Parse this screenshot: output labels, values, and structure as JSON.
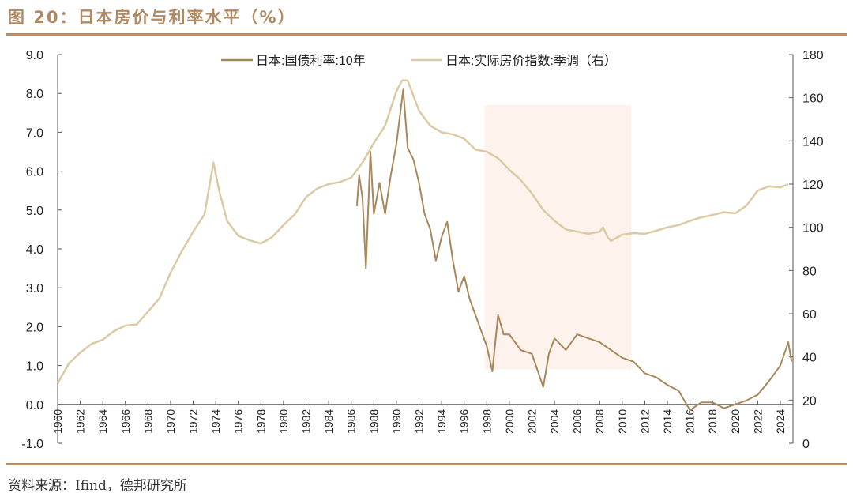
{
  "title": "图 20：日本房价与利率水平（%）",
  "source": "资料来源：Ifind，德邦研究所",
  "chart_data": {
    "type": "line",
    "title": "",
    "xlim": [
      1960,
      2025
    ],
    "x_ticks": [
      "1960",
      "1962",
      "1964",
      "1966",
      "1968",
      "1970",
      "1972",
      "1974",
      "1976",
      "1978",
      "1980",
      "1982",
      "1984",
      "1986",
      "1988",
      "1990",
      "1992",
      "1994",
      "1996",
      "1998",
      "2000",
      "2002",
      "2004",
      "2006",
      "2008",
      "2010",
      "2012",
      "2014",
      "2016",
      "2018",
      "2020",
      "2022",
      "2024"
    ],
    "y_left": {
      "lim": [
        -1,
        9
      ],
      "ticks": [
        "-1.0",
        "0.0",
        "1.0",
        "2.0",
        "3.0",
        "4.0",
        "5.0",
        "6.0",
        "7.0",
        "8.0",
        "9.0"
      ]
    },
    "y_right": {
      "lim": [
        0,
        180
      ],
      "ticks": [
        "0",
        "20",
        "40",
        "60",
        "80",
        "100",
        "120",
        "140",
        "160",
        "180"
      ]
    },
    "legend_position": "top-center",
    "highlight": {
      "x": [
        1997.8,
        2010.8
      ],
      "y_left": [
        0.9,
        7.7
      ],
      "color": "#fdf3ec"
    },
    "series": [
      {
        "name": "日本:国债利率:10年",
        "axis": "left",
        "color": "#a8875c",
        "x": [
          1986.5,
          1986.7,
          1987,
          1987.3,
          1987.7,
          1988,
          1988.5,
          1989,
          1989.5,
          1990,
          1990.6,
          1991,
          1991.5,
          1992,
          1992.5,
          1993,
          1993.5,
          1994,
          1994.5,
          1995,
          1995.5,
          1996,
          1996.5,
          1997,
          1997.5,
          1998,
          1998.5,
          1999,
          1999.5,
          2000,
          2001,
          2002,
          2003,
          2003.5,
          2004,
          2005,
          2006,
          2007,
          2008,
          2009,
          2010,
          2011,
          2012,
          2013,
          2014,
          2015,
          2016,
          2017,
          2018,
          2019,
          2020,
          2021,
          2022,
          2023,
          2024,
          2024.7,
          2025
        ],
        "y": [
          5.1,
          5.9,
          5.3,
          3.5,
          6.5,
          4.9,
          5.7,
          4.9,
          5.9,
          6.7,
          8.1,
          6.6,
          6.3,
          5.7,
          4.9,
          4.5,
          3.7,
          4.3,
          4.7,
          3.7,
          2.9,
          3.3,
          2.7,
          2.3,
          1.9,
          1.5,
          0.85,
          2.3,
          1.8,
          1.8,
          1.4,
          1.3,
          0.45,
          1.3,
          1.7,
          1.4,
          1.8,
          1.7,
          1.6,
          1.4,
          1.2,
          1.1,
          0.8,
          0.7,
          0.5,
          0.35,
          -0.15,
          0.05,
          0.05,
          -0.1,
          0.0,
          0.1,
          0.25,
          0.6,
          1.0,
          1.6,
          1.1
        ]
      },
      {
        "name": "日本:实际房价指数:季调（右）",
        "axis": "right",
        "color": "#dccaa4",
        "x": [
          1960,
          1961,
          1962,
          1963,
          1964,
          1965,
          1966,
          1967,
          1968,
          1969,
          1970,
          1971,
          1972,
          1973,
          1973.5,
          1973.8,
          1974.3,
          1975,
          1976,
          1977,
          1978,
          1979,
          1980,
          1981,
          1982,
          1983,
          1984,
          1985,
          1986,
          1987,
          1988,
          1989,
          1990,
          1990.5,
          1991,
          1992,
          1993,
          1994,
          1995,
          1996,
          1997,
          1998,
          1999,
          2000,
          2001,
          2002,
          2003,
          2004,
          2005,
          2006,
          2007,
          2008,
          2008.3,
          2008.7,
          2009,
          2010,
          2011,
          2012,
          2013,
          2014,
          2015,
          2016,
          2017,
          2018,
          2019,
          2020,
          2021,
          2022,
          2023,
          2024,
          2024.7
        ],
        "y": [
          27.8,
          37,
          42,
          46,
          48,
          52,
          54.5,
          55,
          61,
          67,
          79,
          89,
          98,
          106,
          121,
          130,
          117,
          103,
          96,
          94,
          92.5,
          95.5,
          101,
          106,
          114,
          118,
          120,
          121,
          123,
          130,
          139,
          147,
          163,
          168,
          168,
          154,
          147,
          144,
          143,
          141,
          136,
          135,
          132,
          126.6,
          122,
          115.6,
          108,
          103,
          99,
          98,
          97,
          98,
          100,
          95.5,
          93.7,
          96.6,
          97.3,
          97,
          98.4,
          100,
          101,
          103,
          104.6,
          105.7,
          107,
          106.5,
          110,
          117,
          119,
          118.5,
          120
        ]
      }
    ]
  }
}
